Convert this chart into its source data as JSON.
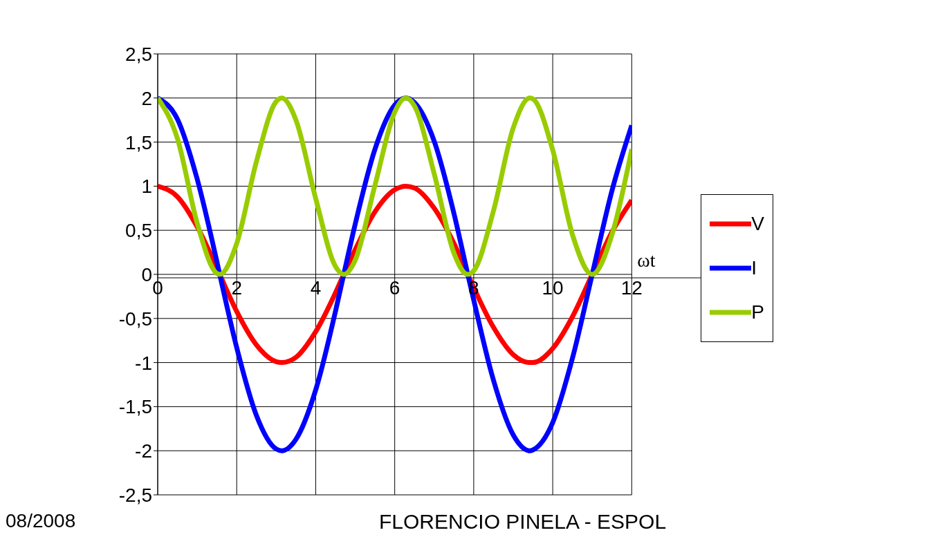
{
  "chart_data": {
    "type": "line",
    "xlabel": "ωt",
    "x": [
      0,
      0.5,
      1,
      1.5,
      1.57,
      2,
      2.5,
      3,
      3.14,
      3.5,
      4,
      4.5,
      4.71,
      5,
      5.5,
      6,
      6.28,
      6.5,
      7,
      7.5,
      7.85,
      8,
      8.5,
      9,
      9.42,
      9.5,
      10,
      10.5,
      11,
      11.5,
      12
    ],
    "series": [
      {
        "name": "V",
        "color": "#ff0000",
        "values": [
          1,
          0.88,
          0.54,
          0.07,
          0,
          -0.42,
          -0.8,
          -0.99,
          -1,
          -0.94,
          -0.65,
          -0.21,
          0,
          0.28,
          0.71,
          0.96,
          1,
          0.98,
          0.75,
          0.35,
          0,
          -0.15,
          -0.6,
          -0.91,
          -1,
          -1,
          -0.84,
          -0.48,
          0,
          0.48,
          0.84
        ]
      },
      {
        "name": "I",
        "color": "#0000ff",
        "values": [
          2,
          1.76,
          1.08,
          0.14,
          0,
          -0.83,
          -1.6,
          -1.98,
          -2,
          -1.87,
          -1.31,
          -0.42,
          0,
          0.57,
          1.42,
          1.92,
          2,
          1.95,
          1.51,
          0.69,
          0,
          -0.29,
          -1.2,
          -1.82,
          -2,
          -1.99,
          -1.68,
          -0.95,
          0,
          0.95,
          1.69
        ]
      },
      {
        "name": "P",
        "color": "#99cc00",
        "values": [
          2,
          1.54,
          0.58,
          0.01,
          0,
          0.35,
          1.28,
          1.96,
          2,
          1.75,
          0.86,
          0.09,
          0,
          0.16,
          1.01,
          1.84,
          2,
          1.91,
          1.14,
          0.24,
          0,
          0.04,
          0.72,
          1.66,
          2,
          1.99,
          1.41,
          0.45,
          0,
          0.45,
          1.42
        ]
      }
    ],
    "xlim": [
      0,
      12
    ],
    "xticks": [
      0,
      2,
      4,
      6,
      8,
      10,
      12
    ],
    "ylim": [
      -2.5,
      2.5
    ],
    "yticks": [
      {
        "value": -2.5,
        "label": "-2,5"
      },
      -2,
      {
        "value": -1.5,
        "label": "-1,5"
      },
      -1,
      {
        "value": -0.5,
        "label": "-0,5"
      },
      0,
      {
        "value": 0.5,
        "label": "0,5"
      },
      1,
      {
        "value": 1.5,
        "label": "1,5"
      },
      2,
      {
        "value": 2.5,
        "label": "2,5"
      }
    ],
    "grid": true,
    "legend": "right",
    "marker": "none",
    "line_style": "solid",
    "annotations": [
      "08/2008",
      "FLORENCIO PINELA - ESPOL"
    ]
  }
}
